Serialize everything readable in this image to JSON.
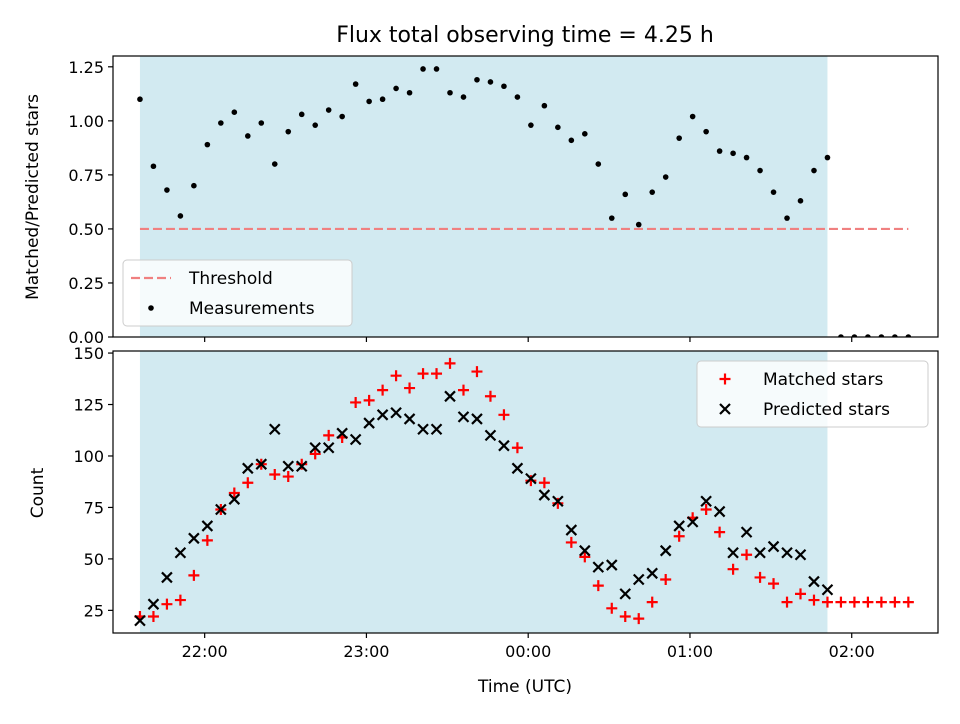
{
  "chart_data": [
    {
      "type": "scatter",
      "title": "Flux total observing time = 4.25 h",
      "xlabel": "",
      "ylabel": "Matched/Predicted stars",
      "xlim": [
        "21:26",
        "02:32"
      ],
      "ylim": [
        0,
        1.3
      ],
      "yticks": [
        "0.00",
        "0.25",
        "0.50",
        "0.75",
        "1.00",
        "1.25"
      ],
      "observing_window": [
        "21:36",
        "01:51"
      ],
      "shade_color": "#add8e6",
      "threshold": 0.5,
      "threshold_color": "#f08080",
      "grid": false,
      "legend_position": "lower-left",
      "series": [
        {
          "name": "Threshold",
          "style": "dashed-line",
          "color": "#f08080",
          "x": [
            "21:36",
            "02:21"
          ],
          "y": [
            0.5,
            0.5
          ]
        },
        {
          "name": "Measurements",
          "style": "dot",
          "color": "#000000",
          "x": [
            "21:36",
            "21:41",
            "21:46",
            "21:51",
            "21:56",
            "22:01",
            "22:06",
            "22:11",
            "22:16",
            "22:21",
            "22:26",
            "22:31",
            "22:36",
            "22:41",
            "22:46",
            "22:51",
            "22:56",
            "23:01",
            "23:06",
            "23:11",
            "23:16",
            "23:21",
            "23:26",
            "23:31",
            "23:36",
            "23:41",
            "23:46",
            "23:51",
            "23:56",
            "00:01",
            "00:06",
            "00:11",
            "00:16",
            "00:21",
            "00:26",
            "00:31",
            "00:36",
            "00:41",
            "00:46",
            "00:51",
            "00:56",
            "01:01",
            "01:06",
            "01:11",
            "01:16",
            "01:21",
            "01:26",
            "01:31",
            "01:36",
            "01:41",
            "01:46",
            "01:51",
            "01:56",
            "02:01",
            "02:06",
            "02:11",
            "02:16",
            "02:21"
          ],
          "y": [
            1.1,
            0.79,
            0.68,
            0.56,
            0.7,
            0.89,
            0.99,
            1.04,
            0.93,
            0.99,
            0.8,
            0.95,
            1.03,
            0.98,
            1.05,
            1.02,
            1.17,
            1.09,
            1.1,
            1.15,
            1.13,
            1.24,
            1.24,
            1.13,
            1.11,
            1.19,
            1.18,
            1.16,
            1.11,
            0.98,
            1.07,
            0.97,
            0.91,
            0.94,
            0.8,
            0.55,
            0.66,
            0.52,
            0.67,
            0.74,
            0.92,
            1.02,
            0.95,
            0.86,
            0.85,
            0.83,
            0.77,
            0.67,
            0.55,
            0.63,
            0.77,
            0.83,
            0,
            0,
            0,
            0,
            0,
            0
          ]
        }
      ]
    },
    {
      "type": "scatter",
      "title": "",
      "xlabel": "Time (UTC)",
      "ylabel": "Count",
      "xlim": [
        "21:26",
        "02:32"
      ],
      "ylim": [
        14,
        151
      ],
      "xticks": [
        "22:00",
        "23:00",
        "00:00",
        "01:00",
        "02:00"
      ],
      "yticks": [
        "25",
        "50",
        "75",
        "100",
        "125",
        "150"
      ],
      "observing_window": [
        "21:36",
        "01:51"
      ],
      "shade_color": "#add8e6",
      "grid": false,
      "legend_position": "top-right",
      "series": [
        {
          "name": "Matched stars",
          "style": "plus",
          "color": "#ff0000",
          "x": [
            "21:36",
            "21:41",
            "21:46",
            "21:51",
            "21:56",
            "22:01",
            "22:06",
            "22:11",
            "22:16",
            "22:21",
            "22:26",
            "22:31",
            "22:36",
            "22:41",
            "22:46",
            "22:51",
            "22:56",
            "23:01",
            "23:06",
            "23:11",
            "23:16",
            "23:21",
            "23:26",
            "23:31",
            "23:36",
            "23:41",
            "23:46",
            "23:51",
            "23:56",
            "00:01",
            "00:06",
            "00:11",
            "00:16",
            "00:21",
            "00:26",
            "00:31",
            "00:36",
            "00:41",
            "00:46",
            "00:51",
            "00:56",
            "01:01",
            "01:06",
            "01:11",
            "01:16",
            "01:21",
            "01:26",
            "01:31",
            "01:36",
            "01:41",
            "01:46",
            "01:51",
            "01:56",
            "02:01",
            "02:06",
            "02:11",
            "02:16",
            "02:21"
          ],
          "y": [
            22,
            22,
            28,
            30,
            42,
            59,
            74,
            82,
            87,
            96,
            91,
            90,
            96,
            101,
            110,
            109,
            126,
            127,
            132,
            139,
            133,
            140,
            140,
            145,
            132,
            141,
            129,
            120,
            104,
            88,
            87,
            77,
            58,
            51,
            37,
            26,
            22,
            21,
            29,
            40,
            61,
            70,
            74,
            63,
            45,
            52,
            41,
            38,
            29,
            33,
            30,
            29,
            29,
            29,
            29,
            29,
            29,
            29
          ]
        },
        {
          "name": "Predicted stars",
          "style": "x",
          "color": "#000000",
          "x": [
            "21:36",
            "21:41",
            "21:46",
            "21:51",
            "21:56",
            "22:01",
            "22:06",
            "22:11",
            "22:16",
            "22:21",
            "22:26",
            "22:31",
            "22:36",
            "22:41",
            "22:46",
            "22:51",
            "22:56",
            "23:01",
            "23:06",
            "23:11",
            "23:16",
            "23:21",
            "23:26",
            "23:31",
            "23:36",
            "23:41",
            "23:46",
            "23:51",
            "23:56",
            "00:01",
            "00:06",
            "00:11",
            "00:16",
            "00:21",
            "00:26",
            "00:31",
            "00:36",
            "00:41",
            "00:46",
            "00:51",
            "00:56",
            "01:01",
            "01:06",
            "01:11",
            "01:16",
            "01:21",
            "01:26",
            "01:31",
            "01:36",
            "01:41",
            "01:46",
            "01:51"
          ],
          "y": [
            20,
            28,
            41,
            53,
            60,
            66,
            74,
            79,
            94,
            96,
            113,
            95,
            95,
            104,
            104,
            111,
            108,
            116,
            120,
            121,
            118,
            113,
            113,
            129,
            119,
            118,
            110,
            105,
            94,
            89,
            81,
            78,
            64,
            54,
            46,
            47,
            33,
            40,
            43,
            54,
            66,
            68,
            78,
            73,
            53,
            63,
            53,
            56,
            53,
            52,
            39,
            35
          ]
        }
      ]
    }
  ]
}
